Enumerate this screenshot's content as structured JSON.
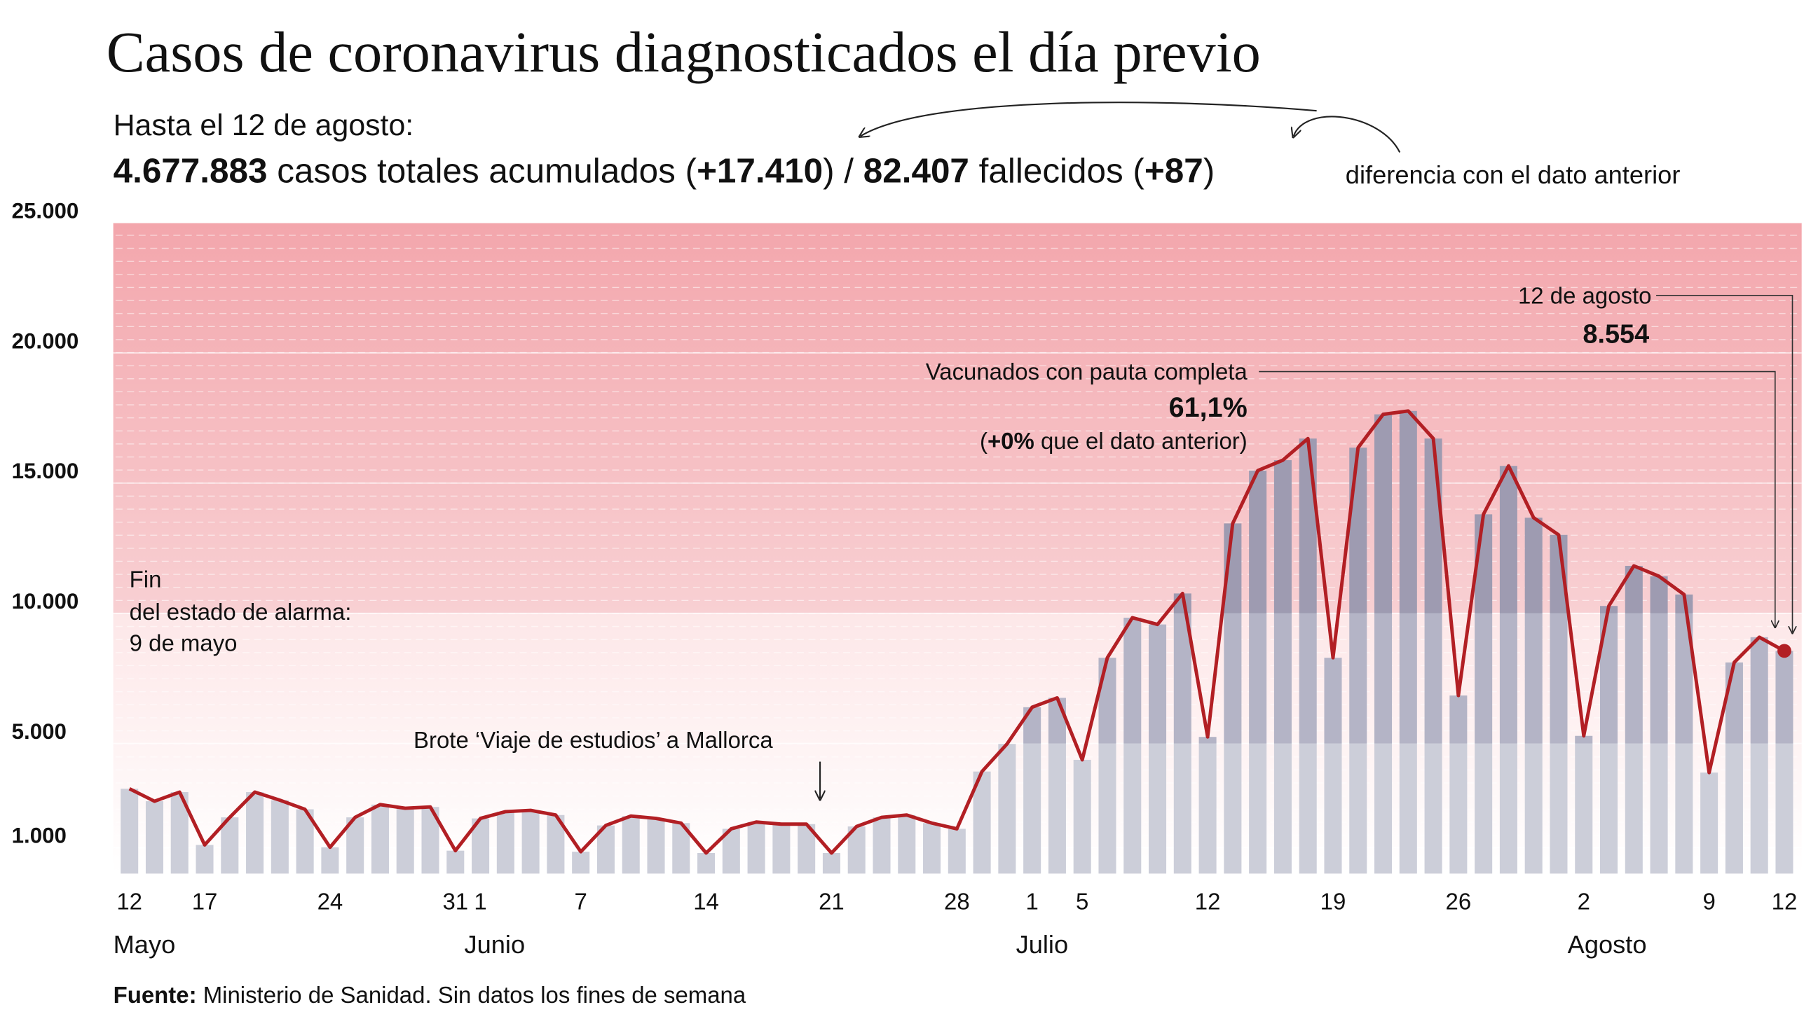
{
  "chart_data": {
    "type": "combo",
    "title": "Casos de coronavirus diagnosticados el día previo",
    "subtitle": "Hasta el 12 de agosto:",
    "summary": [
      "4.677.883",
      " casos totales acumulados (",
      "+17.410",
      ") / ",
      "82.407",
      " fallecidos (",
      "+87",
      ")"
    ],
    "summary_note": "diferencia con el dato anterior",
    "categories": [
      "12",
      null,
      null,
      "17",
      null,
      null,
      null,
      null,
      "24",
      null,
      null,
      null,
      null,
      "31",
      "1",
      null,
      null,
      null,
      "7",
      null,
      null,
      null,
      null,
      "14",
      null,
      null,
      null,
      null,
      "21",
      null,
      null,
      null,
      null,
      "28",
      null,
      null,
      "1",
      null,
      "5",
      null,
      null,
      null,
      null,
      "12",
      null,
      null,
      null,
      null,
      "19",
      null,
      null,
      null,
      null,
      "26",
      null,
      null,
      null,
      null,
      "2",
      null,
      null,
      null,
      null,
      "9",
      null,
      null,
      "12"
    ],
    "months": [
      "Mayo",
      "Junio",
      "Julio",
      "Agosto"
    ],
    "values": [
      3260,
      2780,
      3130,
      1100,
      2160,
      3130,
      2820,
      2470,
      1010,
      2160,
      2650,
      2510,
      2560,
      880,
      2120,
      2380,
      2430,
      2250,
      840,
      1850,
      2210,
      2120,
      1940,
      790,
      1720,
      1980,
      1900,
      1900,
      790,
      1810,
      2160,
      2250,
      1940,
      1720,
      3920,
      4980,
      6390,
      6750,
      4370,
      8290,
      9830,
      9570,
      10760,
      5250,
      13450,
      15480,
      15880,
      16710,
      8290,
      16360,
      17640,
      17770,
      16710,
      6840,
      13800,
      15660,
      13670,
      13010,
      5290,
      10280,
      11820,
      11420,
      10720,
      3880,
      8110,
      9080,
      8554
    ],
    "color": "#a4a3b8",
    "line_color": "#b21f24",
    "ylim": [
      0,
      25000
    ],
    "yticks": [
      {
        "value": 1000,
        "label": "1.000"
      },
      {
        "value": 5000,
        "label": "5.000"
      },
      {
        "value": 10000,
        "label": "10.000"
      },
      {
        "value": 15000,
        "label": "15.000"
      },
      {
        "value": 20000,
        "label": "20.000"
      },
      {
        "value": 25000,
        "label": "25.000"
      }
    ],
    "grid": true,
    "annotations": {
      "alarm": [
        "Fin",
        "del estado de alarma:",
        "9 de mayo"
      ],
      "outbreak": "Brote ‘Viaje de estudios’ a Mallorca",
      "last_date": "12 de agosto",
      "last_value": "8.554",
      "vaccinated": "Vacunados con pauta completa",
      "vaccinated_value": "61,1%",
      "vaccinated_change": [
        "(",
        "+0%",
        " que el dato anterior)"
      ]
    },
    "source": [
      "Fuente:",
      " Ministerio de Sanidad. Sin datos los fines de semana"
    ]
  }
}
